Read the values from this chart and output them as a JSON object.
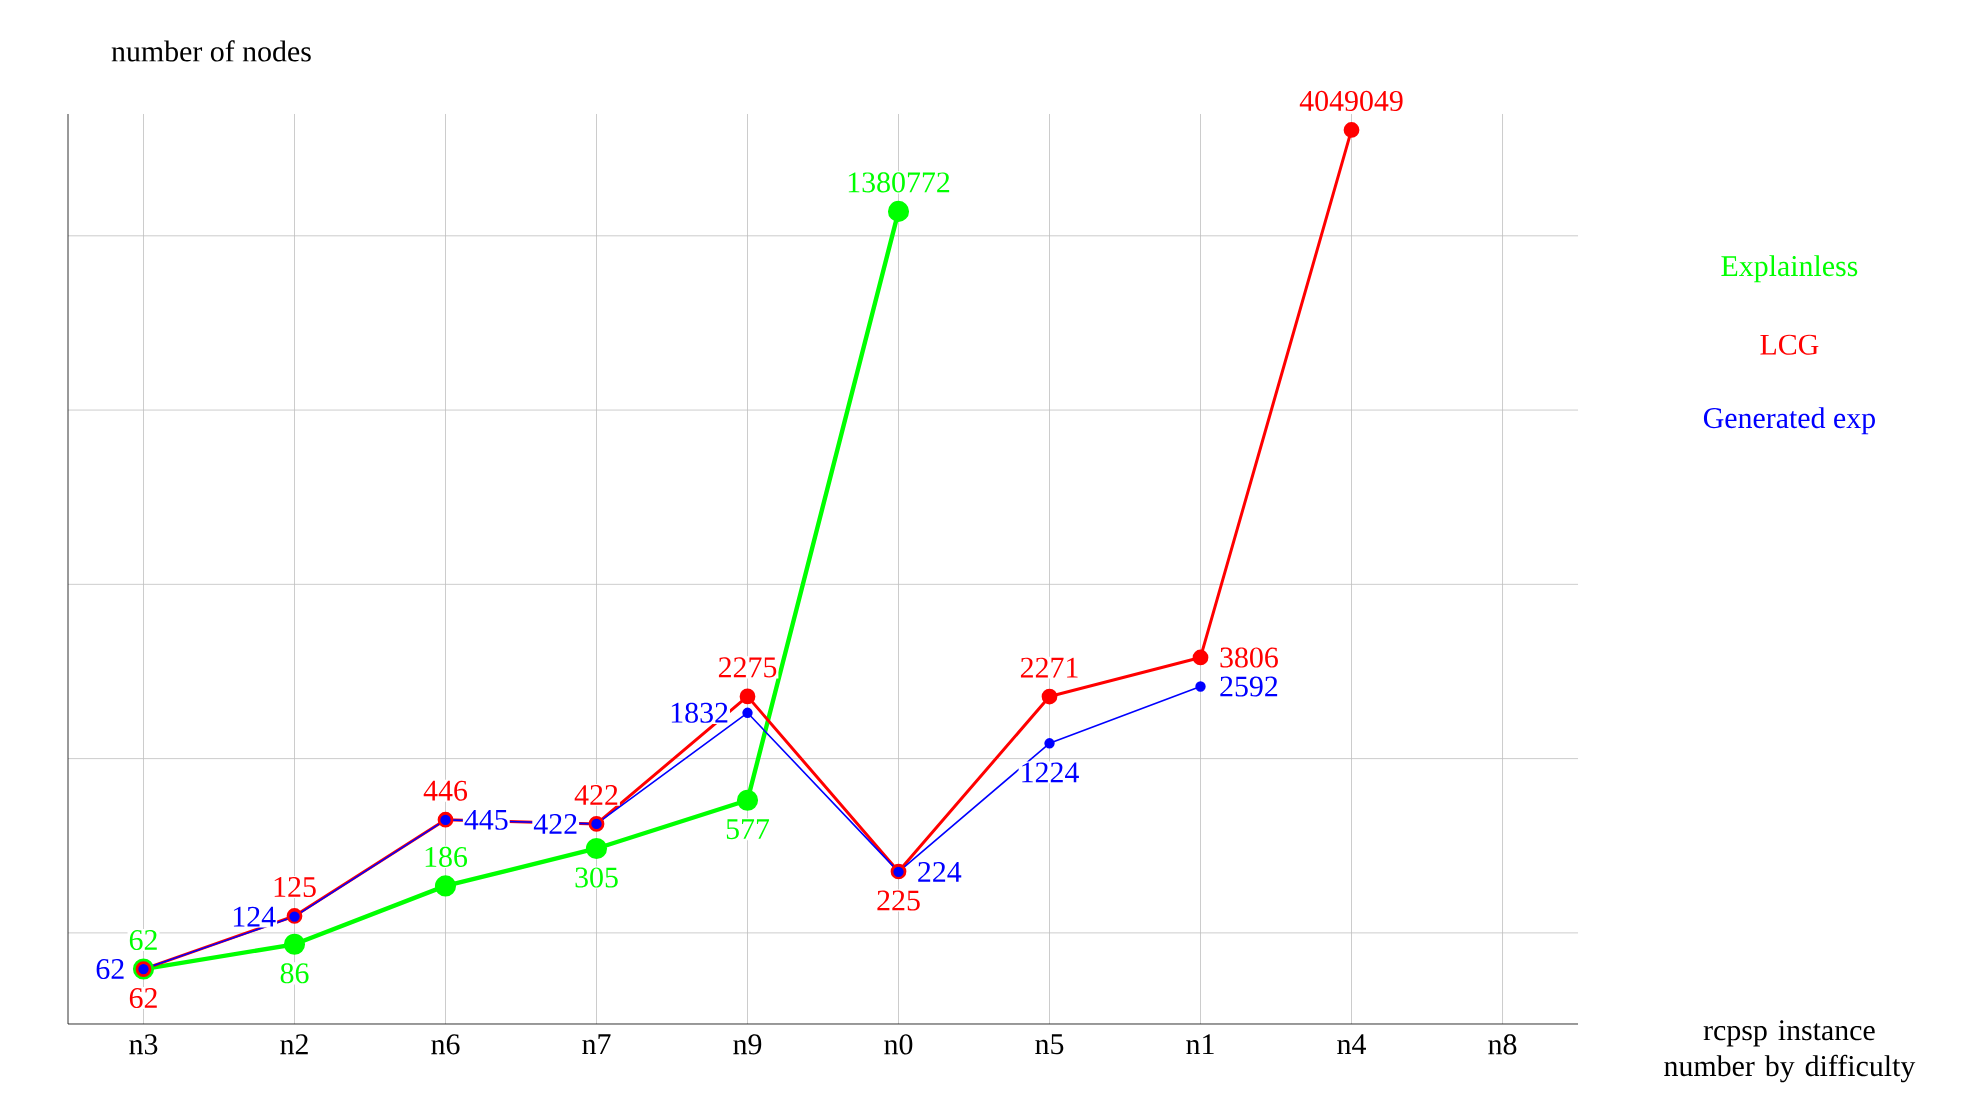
{
  "chart_data": {
    "type": "line",
    "xlabel": "rcpsp instance number by difficulty",
    "ylabel": "number of nodes",
    "categories": [
      "n3",
      "n2",
      "n6",
      "n7",
      "n9",
      "n0",
      "n5",
      "n1",
      "n4",
      "n8"
    ],
    "series": [
      {
        "name": "Explainless",
        "color": "#00ff00",
        "values": [
          62,
          86,
          186,
          305,
          577,
          1380772,
          null,
          null,
          null,
          null
        ]
      },
      {
        "name": "LCG",
        "color": "#ff0000",
        "values": [
          62,
          125,
          446,
          422,
          2275,
          225,
          2271,
          3806,
          4049049,
          null
        ]
      },
      {
        "name": "Generated exp",
        "color": "#0000ff",
        "values": [
          62,
          124,
          445,
          422,
          1832,
          224,
          1224,
          2592,
          null,
          null
        ]
      }
    ],
    "ylim": [
      30,
      5000000
    ],
    "log": true,
    "yticks": [
      {
        "value": 100,
        "label": null
      },
      {
        "value": 1000,
        "label": null
      },
      {
        "value": 10000,
        "label": null
      },
      {
        "value": 100000,
        "label": null
      },
      {
        "value": 1000000,
        "label": null
      }
    ],
    "tick_labels": "x",
    "grid": true,
    "legend": "right",
    "marker": "circle",
    "line_style": "solid",
    "data_labels": true
  }
}
